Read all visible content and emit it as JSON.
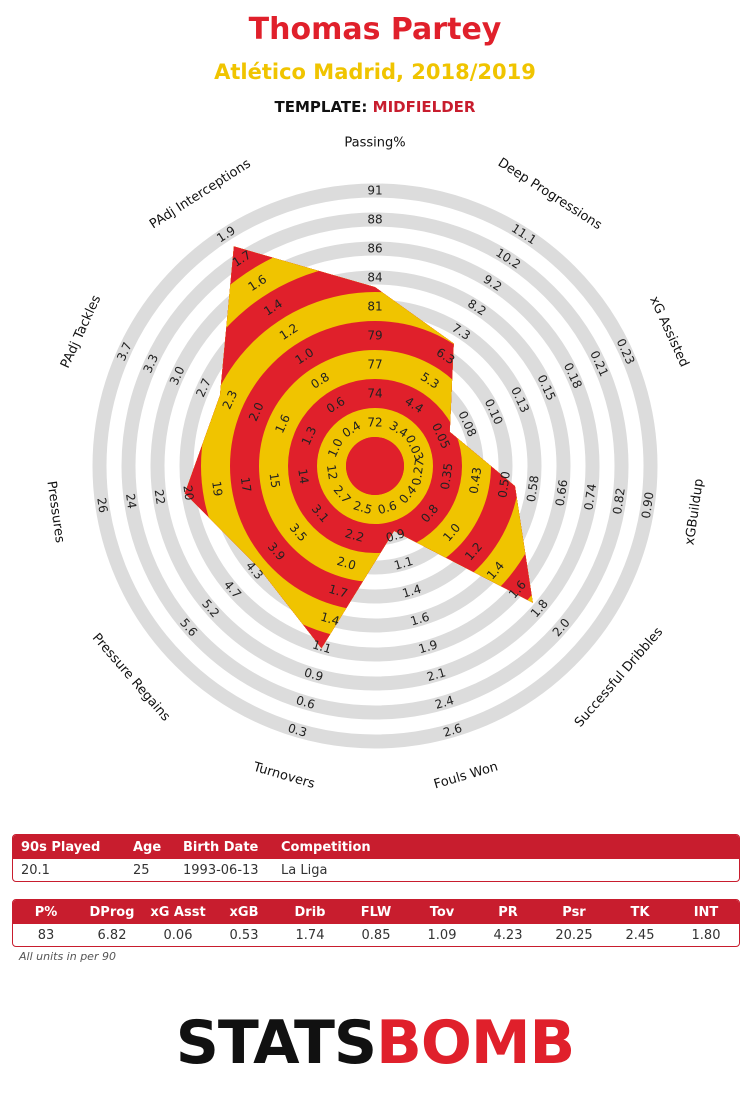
{
  "header": {
    "player_name": "Thomas Partey",
    "club_season": "Atlético Madrid, 2018/2019",
    "template_label": "TEMPLATE:",
    "template_value": "MIDFIELDER"
  },
  "colors": {
    "red": "#e0202b",
    "yellow": "#f0c400",
    "ring_gray": "#dcdcdc",
    "table_red": "#c81d2e"
  },
  "chart_data": {
    "type": "radar",
    "title": "Thomas Partey",
    "rings": 10,
    "axes": [
      {
        "label": "Passing%",
        "ticks": [
          "72",
          "74",
          "77",
          "79",
          "81",
          "84",
          "86",
          "88",
          "91"
        ],
        "value": 83
      },
      {
        "label": "Deep Progressions",
        "ticks": [
          "3.4",
          "4.4",
          "5.3",
          "6.3",
          "7.3",
          "8.2",
          "9.2",
          "10.2",
          "11.1"
        ],
        "value": 6.82
      },
      {
        "label": "xG Assisted",
        "ticks": [
          "0.03",
          "0.05",
          "0.08",
          "0.10",
          "0.13",
          "0.15",
          "0.18",
          "0.21",
          "0.23"
        ],
        "value": 0.06
      },
      {
        "label": "xGBuildup",
        "ticks": [
          "0.27",
          "0.35",
          "0.43",
          "0.50",
          "0.58",
          "0.66",
          "0.74",
          "0.82",
          "0.90"
        ],
        "value": 0.53
      },
      {
        "label": "Successful Dribbles",
        "ticks": [
          "0.4",
          "0.8",
          "1.0",
          "1.2",
          "1.4",
          "1.6",
          "1.8",
          "2.0"
        ],
        "value": 1.74
      },
      {
        "label": "Fouls Won",
        "ticks": [
          "0.6",
          "0.9",
          "1.1",
          "1.4",
          "1.6",
          "1.9",
          "2.1",
          "2.4",
          "2.6"
        ],
        "value": 0.85
      },
      {
        "label": "Turnovers",
        "ticks": [
          "2.5",
          "2.2",
          "2.0",
          "1.7",
          "1.4",
          "1.1",
          "0.9",
          "0.6",
          "0.3"
        ],
        "value": 1.09
      },
      {
        "label": "Pressure Regains",
        "ticks": [
          "2.7",
          "3.1",
          "3.5",
          "3.9",
          "4.3",
          "4.7",
          "5.2",
          "5.6"
        ],
        "value": 4.23
      },
      {
        "label": "Pressures",
        "ticks": [
          "12",
          "14",
          "15",
          "17",
          "19",
          "20",
          "22",
          "24",
          "26"
        ],
        "value": 20.25
      },
      {
        "label": "PAdj Tackles",
        "ticks": [
          "1.0",
          "1.3",
          "1.6",
          "2.0",
          "2.3",
          "2.7",
          "3.0",
          "3.3",
          "3.7"
        ],
        "value": 2.45
      },
      {
        "label": "PAdj Interceptions",
        "ticks": [
          "0.4",
          "0.6",
          "0.8",
          "1.0",
          "1.2",
          "1.4",
          "1.6",
          "1.7",
          "1.9"
        ],
        "value": 1.8
      }
    ]
  },
  "info_table": {
    "headers": [
      "90s Played",
      "Age",
      "Birth Date",
      "Competition"
    ],
    "values": [
      "20.1",
      "25",
      "1993-06-13",
      "La Liga"
    ]
  },
  "stats_table": {
    "headers": [
      "P%",
      "DProg",
      "xG Asst",
      "xGB",
      "Drib",
      "FLW",
      "Tov",
      "PR",
      "Psr",
      "TK",
      "INT"
    ],
    "values": [
      "83",
      "6.82",
      "0.06",
      "0.53",
      "1.74",
      "0.85",
      "1.09",
      "4.23",
      "20.25",
      "2.45",
      "1.80"
    ]
  },
  "footnote": "All units in per 90",
  "logo": {
    "part1": "STATS",
    "part2": "BOMB"
  }
}
